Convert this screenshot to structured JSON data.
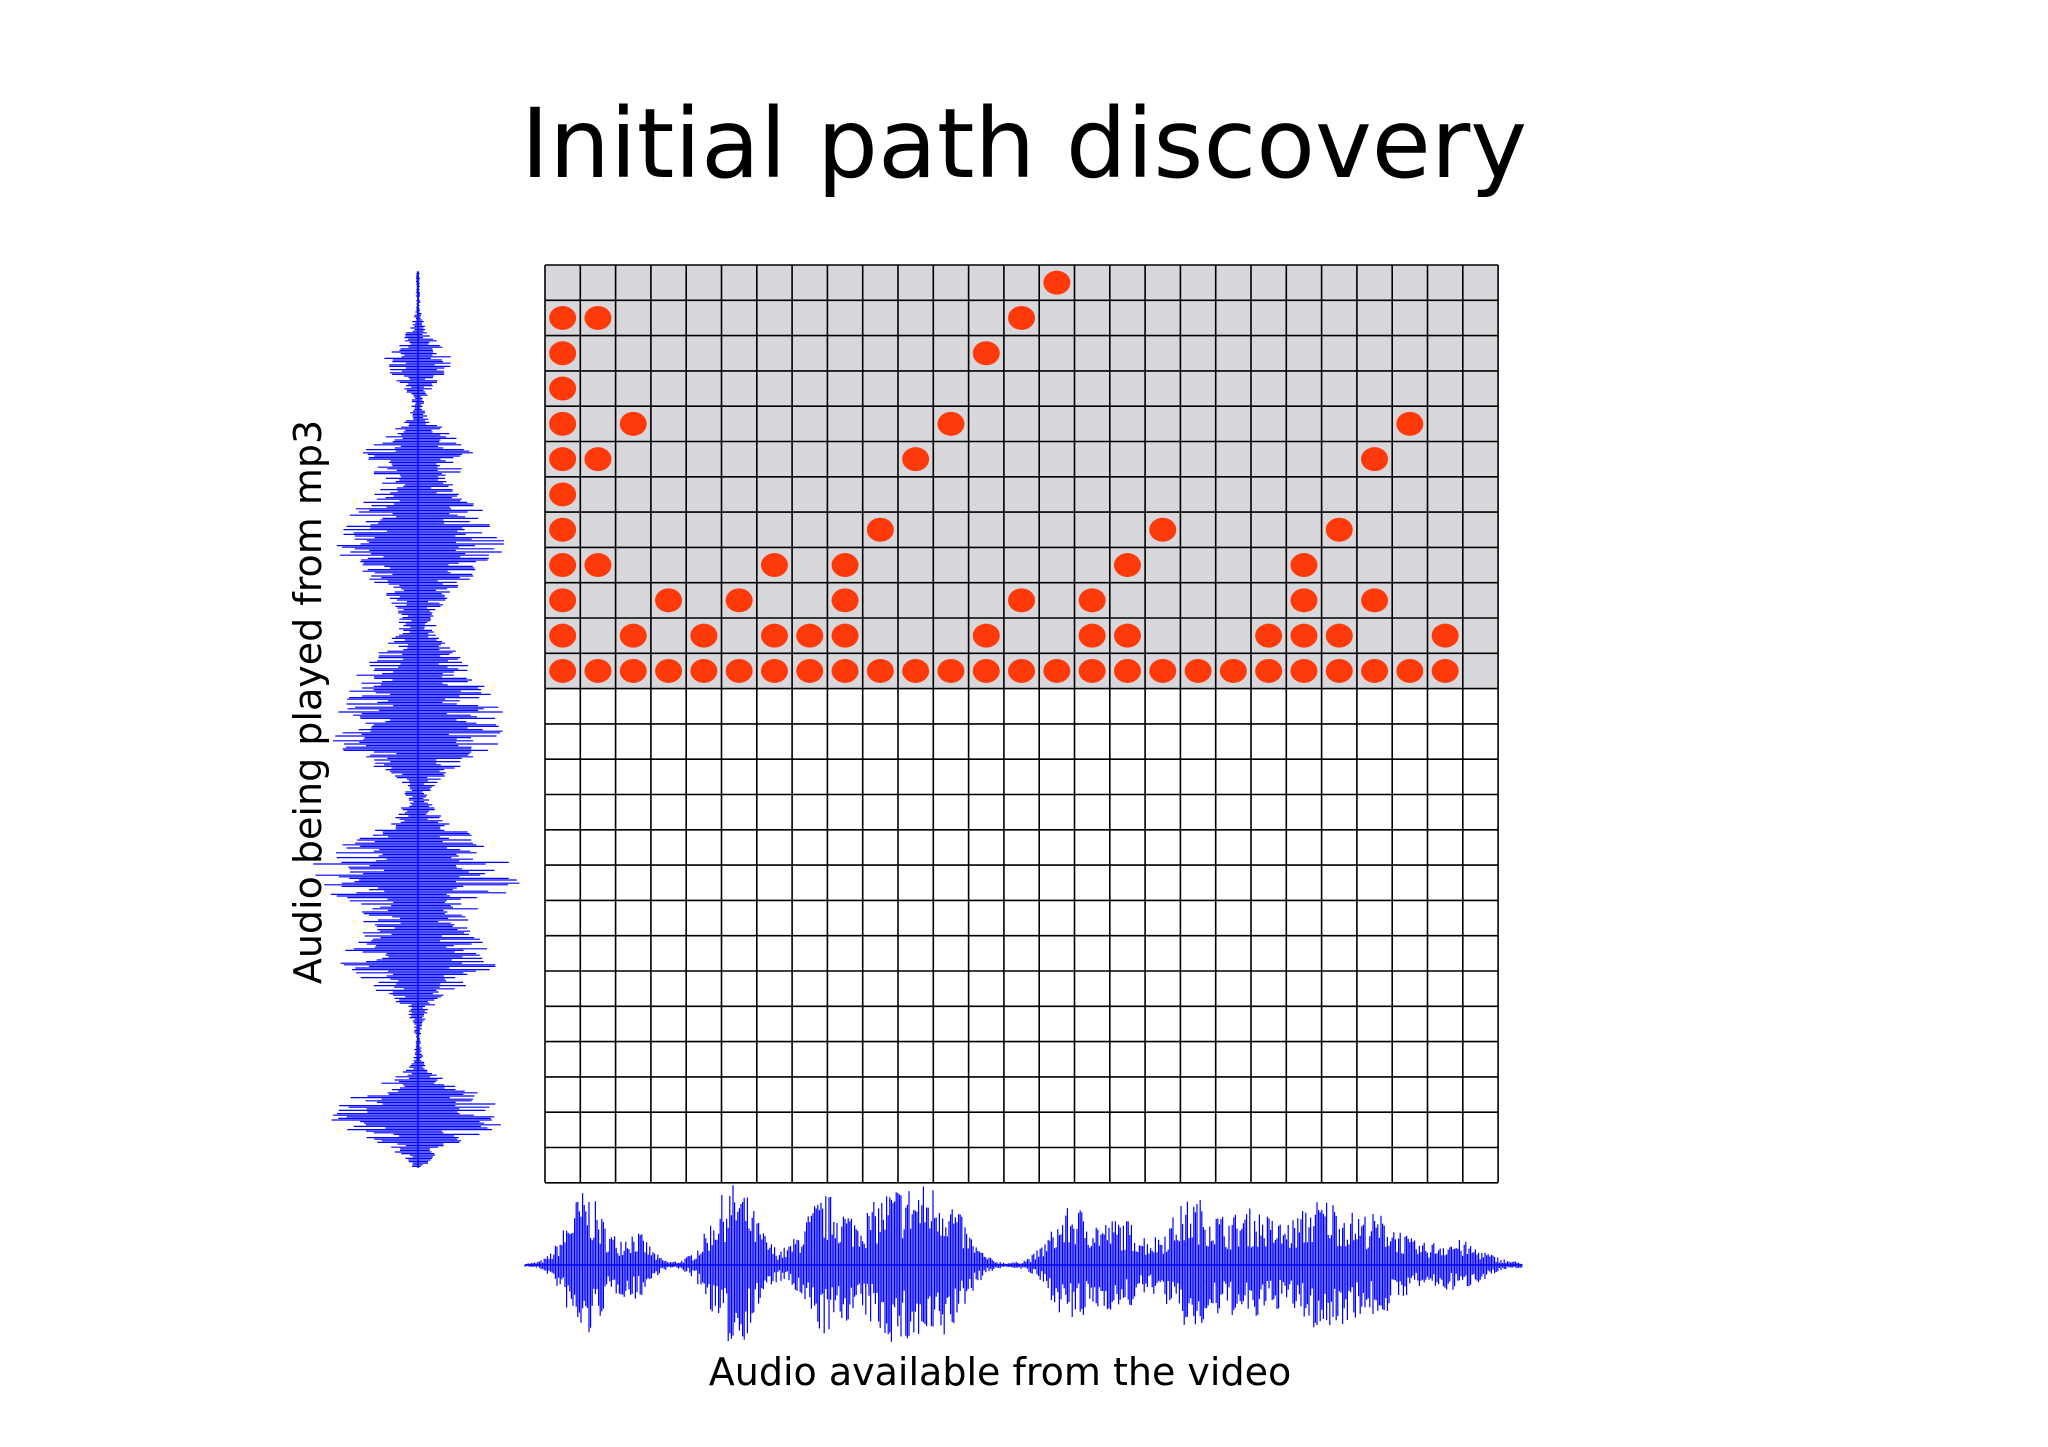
{
  "title": "Initial path discovery",
  "y_axis_label": "Audio being played from mp3",
  "x_axis_label": "Audio available from the video",
  "colors": {
    "dot": "#ff3a0a",
    "waveform": "#0000ff",
    "shaded_region": "#d8d8dc",
    "grid_line": "#000000"
  },
  "grid": {
    "columns": 27,
    "rows": 26,
    "shaded_rows": 12
  },
  "dots": {
    "note": "",
    "points": [
      [
        0,
        0
      ],
      [
        1,
        0
      ],
      [
        2,
        0
      ],
      [
        3,
        0
      ],
      [
        4,
        0
      ],
      [
        5,
        0
      ],
      [
        6,
        0
      ],
      [
        7,
        0
      ],
      [
        8,
        0
      ],
      [
        9,
        0
      ],
      [
        10,
        0
      ],
      [
        11,
        0
      ],
      [
        12,
        0
      ],
      [
        13,
        0
      ],
      [
        14,
        0
      ],
      [
        15,
        0
      ],
      [
        16,
        0
      ],
      [
        17,
        0
      ],
      [
        18,
        0
      ],
      [
        19,
        0
      ],
      [
        20,
        0
      ],
      [
        21,
        0
      ],
      [
        22,
        0
      ],
      [
        23,
        0
      ],
      [
        24,
        0
      ],
      [
        25,
        0
      ],
      [
        0,
        1
      ],
      [
        2,
        1
      ],
      [
        4,
        1
      ],
      [
        6,
        1
      ],
      [
        7,
        1
      ],
      [
        8,
        1
      ],
      [
        12,
        1
      ],
      [
        15,
        1
      ],
      [
        16,
        1
      ],
      [
        20,
        1
      ],
      [
        21,
        1
      ],
      [
        22,
        1
      ],
      [
        25,
        1
      ],
      [
        0,
        2
      ],
      [
        3,
        2
      ],
      [
        5,
        2
      ],
      [
        8,
        2
      ],
      [
        13,
        2
      ],
      [
        15,
        2
      ],
      [
        21,
        2
      ],
      [
        23,
        2
      ],
      [
        0,
        3
      ],
      [
        1,
        3
      ],
      [
        6,
        3
      ],
      [
        8,
        3
      ],
      [
        16,
        3
      ],
      [
        21,
        3
      ],
      [
        0,
        4
      ],
      [
        9,
        4
      ],
      [
        17,
        4
      ],
      [
        22,
        4
      ],
      [
        0,
        5
      ],
      [
        0,
        6
      ],
      [
        1,
        6
      ],
      [
        10,
        6
      ],
      [
        23,
        6
      ],
      [
        0,
        7
      ],
      [
        2,
        7
      ],
      [
        11,
        7
      ],
      [
        24,
        7
      ],
      [
        0,
        8
      ],
      [
        0,
        9
      ],
      [
        12,
        9
      ],
      [
        0,
        10
      ],
      [
        1,
        10
      ],
      [
        13,
        10
      ],
      [
        14,
        11
      ]
    ]
  }
}
